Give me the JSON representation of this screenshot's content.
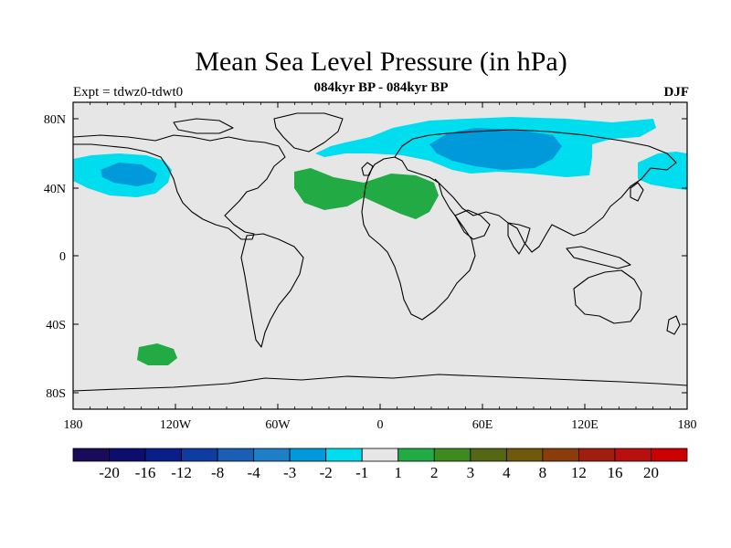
{
  "header": {
    "title": "Mean Sea Level Pressure (in hPa)",
    "subtitle": "084kyr BP - 084kyr BP",
    "experiment": "Expt = tdwz0-tdwt0",
    "season": "DJF"
  },
  "map": {
    "lat_ticks": [
      "80N",
      "40N",
      "0",
      "40S",
      "80S"
    ],
    "lon_ticks": [
      "180",
      "120W",
      "60W",
      "0",
      "60E",
      "120E",
      "180"
    ],
    "background_color": "#e6e6e6",
    "coast_color": "#000000"
  },
  "anomalies": [
    {
      "name": "north-pacific-low",
      "level": -2,
      "color": "#00ddee"
    },
    {
      "name": "north-pacific-core",
      "level": -3,
      "color": "#0099d9"
    },
    {
      "name": "arctic-eurasia-low",
      "level": -2,
      "color": "#00ddee"
    },
    {
      "name": "siberia-core",
      "level": -3,
      "color": "#0099d9"
    },
    {
      "name": "far-east-pacific-low",
      "level": -2,
      "color": "#00ddee"
    },
    {
      "name": "atlantic-europe-high",
      "level": 1,
      "color": "#22aa44"
    },
    {
      "name": "southern-ocean-high",
      "level": 1,
      "color": "#22aa44"
    }
  ],
  "colorbar": {
    "labels": [
      "-20",
      "-16",
      "-12",
      "-8",
      "-4",
      "-3",
      "-2",
      "-1",
      "1",
      "2",
      "3",
      "4",
      "8",
      "12",
      "16",
      "20"
    ],
    "colors": [
      "#1a0a5a",
      "#0d0d6e",
      "#0a1e8a",
      "#0f3ca0",
      "#1a5fb4",
      "#1f7ec8",
      "#0099d9",
      "#00ddee",
      "#e6e6e6",
      "#22aa44",
      "#3d8a1e",
      "#556614",
      "#705a0a",
      "#8a3c0a",
      "#a01e0f",
      "#b80f0f",
      "#cc0000"
    ]
  }
}
